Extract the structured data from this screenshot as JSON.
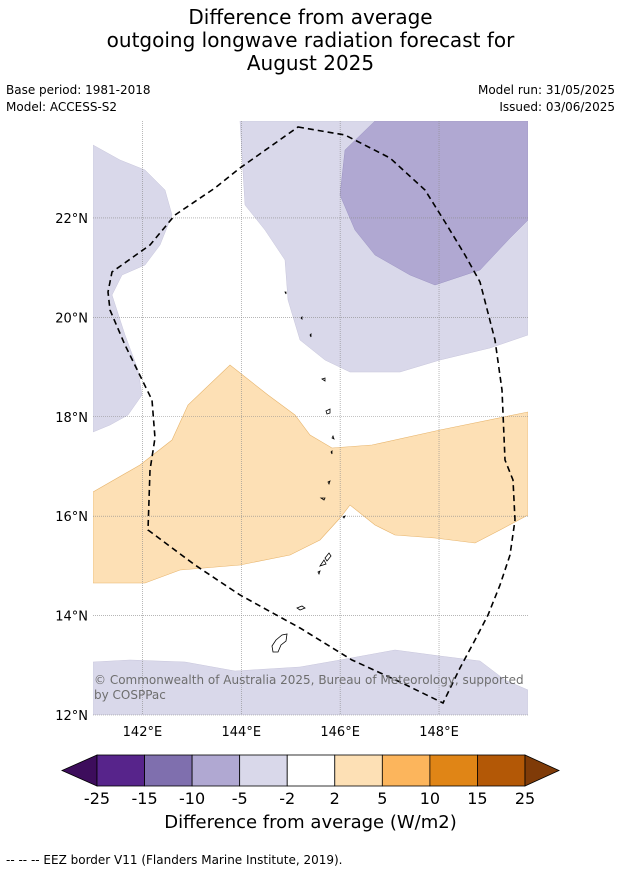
{
  "title": {
    "line1": "Difference from average",
    "line2": "outgoing longwave radiation forecast for",
    "line3": "August 2025"
  },
  "meta": {
    "base_period": "Base period: 1981-2018",
    "model": "Model: ACCESS-S2",
    "model_run": "Model run: 31/05/2025",
    "issued": "Issued: 03/06/2025"
  },
  "map": {
    "lon_range": [
      141.0,
      149.8
    ],
    "lat_range": [
      12.0,
      23.95
    ],
    "lon_ticks": [
      142,
      144,
      146,
      148
    ],
    "lat_ticks": [
      12,
      14,
      16,
      18,
      20,
      22
    ],
    "lon_tick_labels": [
      "142°E",
      "144°E",
      "146°E",
      "148°E"
    ],
    "lat_tick_labels": [
      "12°N",
      "14°N",
      "16°N",
      "18°N",
      "20°N",
      "22°N"
    ],
    "eez_style": "dashed",
    "copyright_line1": "© Commonwealth of Australia 2025, Bureau of Meteorology, supported",
    "copyright_line2": "by COSPPac"
  },
  "colorbar": {
    "boundaries": [
      "-25",
      "-15",
      "-10",
      "-5",
      "-2",
      "2",
      "5",
      "10",
      "15",
      "25"
    ],
    "colors": [
      "#3d0d5c",
      "#57248b",
      "#7f6fae",
      "#b0a8d2",
      "#d9d8ea",
      "#ffffff",
      "#fde0b5",
      "#fcb55c",
      "#e08516",
      "#b35806",
      "#7f3b08"
    ],
    "title": "Difference from average (W/m2)"
  },
  "footnote": "--  --  -- EEZ border V11 (Flanders Marine Institute, 2019)."
}
